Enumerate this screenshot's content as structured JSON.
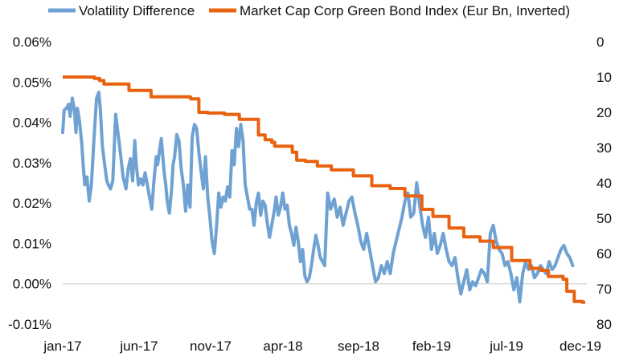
{
  "chart_data": {
    "type": "line",
    "title": "",
    "colors": {
      "volatility": "#6FA2D2",
      "index": "#E8620F",
      "axis": "#C9C9C9",
      "grid": "#D9D9D9"
    },
    "x_tick_labels": [
      "jan-17",
      "jun-17",
      "nov-17",
      "apr-18",
      "sep-18",
      "feb-19",
      "jul-19",
      "dec-19"
    ],
    "y_left": {
      "ylim": [
        -0.01,
        0.06
      ],
      "ticks": [
        -0.01,
        0,
        0.01,
        0.02,
        0.03,
        0.04,
        0.05,
        0.06
      ],
      "tick_labels": [
        "-0.01%",
        "0.00%",
        "0.01%",
        "0.02%",
        "0.03%",
        "0.04%",
        "0.05%",
        "0.06%"
      ],
      "unit": "%"
    },
    "y_right": {
      "ylim": [
        0,
        80
      ],
      "inverted": true,
      "ticks": [
        0,
        10,
        20,
        30,
        40,
        50,
        60,
        70,
        80
      ],
      "tick_labels": [
        "0",
        "10",
        "20",
        "30",
        "40",
        "50",
        "60",
        "70",
        "80"
      ],
      "unit": "Eur Bn"
    },
    "series": [
      {
        "name": "Volatility Difference",
        "axis": "left",
        "x": [
          0,
          0.2,
          0.5,
          0.8,
          1,
          1.3,
          1.6,
          1.8,
          2,
          2.3,
          2.6,
          2.8,
          3,
          3.3,
          3.6,
          3.9,
          4.2,
          4.6,
          4.9,
          5.1,
          5.4,
          5.7,
          6,
          6.2,
          6.5,
          6.8,
          7.2,
          7.6,
          7.9,
          8.2,
          8.6,
          8.9,
          9.2,
          9.5,
          9.8,
          10,
          10.3,
          10.6,
          10.9,
          11.2,
          11.5,
          11.8,
          12.1,
          12.4,
          12.7,
          12.9,
          13.2,
          13.4,
          13.6,
          13.8,
          14,
          14.2,
          14.5,
          14.8,
          15,
          15.2,
          15.5,
          15.8,
          16.1,
          16.4,
          16.7,
          17,
          17.3,
          17.6,
          17.9,
          18.2,
          18.5,
          18.8,
          19.1,
          19.4,
          19.7,
          20,
          20.3,
          20.6,
          20.9,
          21.2,
          21.5,
          21.8,
          22.1,
          22.4,
          22.7,
          23,
          23.3,
          23.6,
          23.9,
          24.2,
          24.5,
          24.8,
          25.1,
          25.4,
          25.7,
          26,
          26.3,
          26.6,
          26.9,
          27.2,
          27.5,
          27.8,
          28.1,
          28.4,
          28.7,
          29,
          29.3,
          29.6,
          29.9,
          30.2,
          30.5,
          30.8,
          31.1,
          31.4,
          31.7,
          32,
          32.3,
          32.6,
          32.9,
          33.2,
          33.5,
          33.8,
          34.1,
          34.4,
          34.7,
          35,
          35.3,
          35.6
        ],
        "values": [
          0.0375,
          0.043,
          0.0435,
          0.0445,
          0.0415,
          0.046,
          0.043,
          0.0375,
          0.0435,
          0.04,
          0.0345,
          0.029,
          0.0245,
          0.0265,
          0.0205,
          0.0245,
          0.0345,
          0.046,
          0.0475,
          0.0435,
          0.034,
          0.0295,
          0.0255,
          0.0245,
          0.0235,
          0.0255,
          0.042,
          0.036,
          0.0315,
          0.0265,
          0.0235,
          0.0285,
          0.031,
          0.0255,
          0.0355,
          0.0295,
          0.0245,
          0.026,
          0.0245,
          0.0275,
          0.0245,
          0.0215,
          0.0185,
          0.0255,
          0.0315,
          0.0295,
          0.0335,
          0.036,
          0.0315,
          0.0275,
          0.0245,
          0.0205,
          0.0175,
          0.0235,
          0.0295,
          0.0315,
          0.037,
          0.0355,
          0.0285,
          0.0245,
          0.018,
          0.0245,
          0.019,
          0.0365,
          0.0395,
          0.0385,
          0.0325,
          0.028,
          0.0235,
          0.0315,
          0.0215,
          0.0165,
          0.0105,
          0.0075,
          0.014,
          0.0225,
          0.019,
          0.0215,
          0.0205,
          0.024,
          0.0215,
          0.033,
          0.0295,
          0.0385,
          0.034,
          0.0395,
          0.0355,
          0.0245,
          0.0215,
          0.0185,
          0.0185,
          0.0145,
          0.02,
          0.0225,
          0.017,
          0.0205,
          0.0195,
          0.015,
          0.0115,
          0.0145,
          0.0175,
          0.0215,
          0.017,
          0.019,
          0.0225,
          0.0185,
          0.0195,
          0.0145,
          0.0125,
          0.0095,
          0.014,
          0.0105,
          0.0055,
          0.0085,
          0.002,
          0.0005,
          0.0015,
          0.0045,
          0.0085,
          0.012,
          0.0095,
          0.0065,
          0.0055,
          0.0045
        ]
      },
      {
        "name": "Market Cap Corp Green Bond Index (Eur Bn, Inverted)",
        "axis": "right",
        "x": [
          0,
          4.3,
          5,
          5.6,
          9,
          12,
          17.3,
          17.4,
          18.5,
          19.7,
          22,
          24,
          26.6,
          27.5,
          28.4,
          28.8,
          31.2,
          31.8,
          33,
          34.6,
          36.5,
          39.5,
          42,
          44.5,
          46.5,
          48.8,
          50.3,
          52.5,
          54.5,
          56.7,
          58.5,
          61,
          63.5,
          65,
          66,
          68,
          68.5,
          69.5,
          70.6
        ],
        "values": [
          10,
          10.4,
          11,
          12,
          13.8,
          15.6,
          15.8,
          16.2,
          20,
          20.2,
          20.6,
          22,
          26.4,
          27.8,
          28.5,
          29.6,
          31.3,
          33.6,
          33.9,
          35.2,
          36.3,
          38,
          40.8,
          41.6,
          43.7,
          47.5,
          49.5,
          52.8,
          55.3,
          56.5,
          58.3,
          62,
          64.2,
          64.8,
          66.5,
          67.3,
          70.7,
          73.6,
          73.8
        ]
      }
    ],
    "volatility_tail": {
      "x": [
        36,
        36.4,
        36.9,
        37.3,
        37.7,
        38.1,
        38.5,
        38.9,
        39.3,
        39.7,
        40.1,
        40.5,
        40.9,
        41.3,
        41.7,
        42.1,
        42.5,
        42.9,
        43.3,
        43.7,
        44.1,
        44.5,
        44.9,
        45.3,
        45.7,
        46.1,
        46.5,
        46.9,
        47.3,
        47.7,
        48.1,
        48.5,
        48.9,
        49.3,
        49.7,
        50.1,
        50.5,
        50.9,
        51.3,
        51.7,
        52.1,
        52.5,
        52.9,
        53.3,
        53.7,
        54.1,
        54.5,
        54.9,
        55.3,
        55.7,
        56.1,
        56.5,
        56.9,
        57.3,
        57.7,
        58.1,
        58.5,
        58.9,
        59.3,
        59.7,
        60.1,
        60.5,
        60.9,
        61.3,
        61.7,
        62.1,
        62.5,
        62.9,
        63.3,
        63.7,
        64.1,
        64.5,
        64.9,
        65.3,
        65.7,
        66.1,
        66.5,
        66.9,
        67.3,
        67.7,
        68.1,
        68.5,
        68.9,
        69.3
      ],
      "values": [
        0.0225,
        0.0185,
        0.021,
        0.0165,
        0.019,
        0.0145,
        0.0175,
        0.0205,
        0.0215,
        0.0175,
        0.0145,
        0.0105,
        0.0085,
        0.0125,
        0.0085,
        0.0045,
        0.0005,
        0.0015,
        0.0045,
        0.0025,
        0.0055,
        0.0025,
        0.0075,
        0.0105,
        0.0135,
        0.0165,
        0.0205,
        0.0225,
        0.0165,
        0.0175,
        0.025,
        0.0195,
        0.0145,
        0.0115,
        0.0165,
        0.0085,
        0.0125,
        0.0075,
        0.0095,
        0.0125,
        0.0085,
        0.0055,
        0.0045,
        0.0065,
        0.0015,
        -0.0025,
        0.0005,
        0.0035,
        -0.0015,
        0.0005,
        -0.0005,
        0.0015,
        0.0035,
        0.0025,
        0.0005,
        0.0125,
        0.0145,
        0.0105,
        0.0085,
        0.0075,
        0.0045,
        0.0055,
        0.0025,
        -0.0015,
        0.0015,
        -0.0045,
        0.0025,
        0.0055,
        0.0035,
        0.0045,
        0.0015,
        0.0025,
        0.0045,
        0.0035,
        0.0025,
        0.0055,
        0.0035,
        0.0045,
        0.0065,
        0.0085,
        0.0095,
        0.0075,
        0.0065,
        0.0045
      ]
    },
    "x_range": [
      0,
      71
    ]
  }
}
